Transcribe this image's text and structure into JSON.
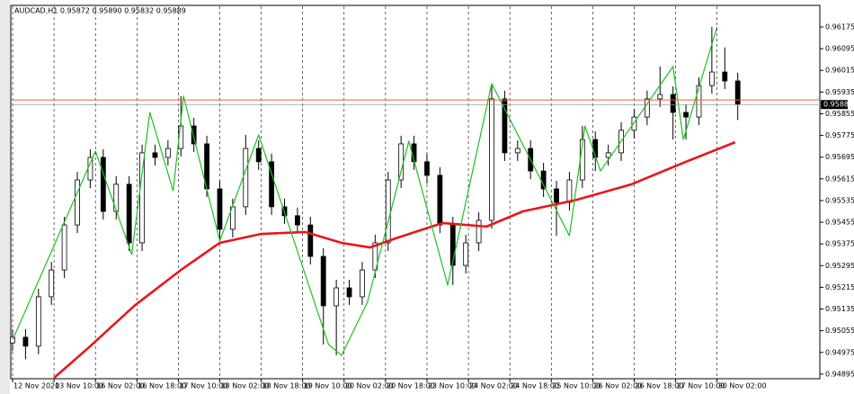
{
  "chart_data": {
    "type": "candlestick",
    "title": "AUDCAD,H1  0.95872 0.95890 0.95832 0.95889",
    "xlim": [
      0,
      311
    ],
    "ylim": [
      0.94878,
      0.96248
    ],
    "yticks": [
      0.96175,
      0.96095,
      0.96015,
      0.95935,
      0.95855,
      0.95775,
      0.95695,
      0.95615,
      0.95535,
      0.95455,
      0.95375,
      0.95295,
      0.95215,
      0.95135,
      0.95055,
      0.94975,
      0.94895
    ],
    "xticks": [
      {
        "value": 0,
        "label": "12 Nov 2020"
      },
      {
        "value": 16,
        "label": "13 Nov 10:00"
      },
      {
        "value": 32,
        "label": "16 Nov 02:00"
      },
      {
        "value": 48,
        "label": "16 Nov 18:00"
      },
      {
        "value": 64,
        "label": "17 Nov 10:00"
      },
      {
        "value": 80,
        "label": "18 Nov 02:00"
      },
      {
        "value": 96,
        "label": "18 Nov 18:00"
      },
      {
        "value": 112,
        "label": "19 Nov 10:00"
      },
      {
        "value": 128,
        "label": "20 Nov 02:00"
      },
      {
        "value": 144,
        "label": "20 Nov 18:00"
      },
      {
        "value": 160,
        "label": "23 Nov 10:00"
      },
      {
        "value": 176,
        "label": "24 Nov 02:00"
      },
      {
        "value": 192,
        "label": "24 Nov 18:00"
      },
      {
        "value": 208,
        "label": "25 Nov 10:00"
      },
      {
        "value": 224,
        "label": "26 Nov 02:00"
      },
      {
        "value": 240,
        "label": "26 Nov 18:00"
      },
      {
        "value": 256,
        "label": "27 Nov 10:00"
      },
      {
        "value": 272,
        "label": "30 Nov 02:00"
      }
    ],
    "grid": true,
    "x": [
      0,
      5,
      10,
      15,
      20,
      25,
      30,
      35,
      40,
      45,
      50,
      55,
      60,
      65,
      70,
      75,
      80,
      85,
      90,
      95,
      100,
      105,
      110,
      115,
      120,
      125,
      130,
      135,
      140,
      145,
      150,
      155,
      160,
      165,
      170,
      175,
      180,
      185,
      190,
      195,
      200,
      205,
      210,
      215,
      220,
      225,
      230,
      235,
      240,
      245,
      250,
      255,
      260,
      265,
      270,
      275,
      280
    ],
    "ohlc": [
      [
        0.9501,
        0.95061,
        0.9498,
        0.95031
      ],
      [
        0.95031,
        0.95061,
        0.9495,
        0.94998
      ],
      [
        0.94998,
        0.9521,
        0.94968,
        0.9518
      ],
      [
        0.9518,
        0.95309,
        0.9515,
        0.95279
      ],
      [
        0.95279,
        0.95475,
        0.95249,
        0.95445
      ],
      [
        0.95445,
        0.95641,
        0.95415,
        0.95611
      ],
      [
        0.95611,
        0.95724,
        0.95581,
        0.95694
      ],
      [
        0.95694,
        0.95724,
        0.95465,
        0.95495
      ],
      [
        0.95495,
        0.95625,
        0.95465,
        0.95595
      ],
      [
        0.95595,
        0.95625,
        0.95349,
        0.95379
      ],
      [
        0.95379,
        0.95741,
        0.95349,
        0.95711
      ],
      [
        0.95711,
        0.95741,
        0.95664,
        0.95694
      ],
      [
        0.95694,
        0.95757,
        0.95664,
        0.95727
      ],
      [
        0.95727,
        0.9592,
        0.95697,
        0.9581
      ],
      [
        0.9581,
        0.9584,
        0.95714,
        0.95744
      ],
      [
        0.95744,
        0.95774,
        0.95548,
        0.95578
      ],
      [
        0.95578,
        0.95608,
        0.95386,
        0.95429
      ],
      [
        0.95429,
        0.95542,
        0.95399,
        0.95512
      ],
      [
        0.95512,
        0.95777,
        0.95482,
        0.95727
      ],
      [
        0.95727,
        0.95757,
        0.95648,
        0.95678
      ],
      [
        0.95678,
        0.95708,
        0.95482,
        0.95512
      ],
      [
        0.95512,
        0.95542,
        0.95449,
        0.95479
      ],
      [
        0.95479,
        0.95509,
        0.95415,
        0.95445
      ],
      [
        0.95445,
        0.95475,
        0.95299,
        0.95329
      ],
      [
        0.95329,
        0.95359,
        0.95004,
        0.95147
      ],
      [
        0.95147,
        0.95243,
        0.94964,
        0.95213
      ],
      [
        0.95213,
        0.95243,
        0.9515,
        0.9518
      ],
      [
        0.9518,
        0.95309,
        0.9515,
        0.95279
      ],
      [
        0.95279,
        0.95409,
        0.95249,
        0.95379
      ],
      [
        0.95379,
        0.95641,
        0.95349,
        0.95611
      ],
      [
        0.95611,
        0.95774,
        0.95581,
        0.95744
      ],
      [
        0.95744,
        0.95774,
        0.95648,
        0.95678
      ],
      [
        0.95678,
        0.95708,
        0.95598,
        0.95628
      ],
      [
        0.95628,
        0.95658,
        0.95415,
        0.95445
      ],
      [
        0.95445,
        0.95475,
        0.95223,
        0.95296
      ],
      [
        0.95296,
        0.95409,
        0.95266,
        0.95379
      ],
      [
        0.95379,
        0.95492,
        0.95349,
        0.95462
      ],
      [
        0.95462,
        0.95966,
        0.95432,
        0.9591
      ],
      [
        0.9591,
        0.9594,
        0.95681,
        0.95711
      ],
      [
        0.95711,
        0.95757,
        0.95681,
        0.95727
      ],
      [
        0.95727,
        0.95757,
        0.95614,
        0.95644
      ],
      [
        0.95644,
        0.95674,
        0.95548,
        0.95578
      ],
      [
        0.95578,
        0.95608,
        0.95405,
        0.95528
      ],
      [
        0.95528,
        0.95641,
        0.95498,
        0.95611
      ],
      [
        0.95611,
        0.9581,
        0.95581,
        0.9576
      ],
      [
        0.9576,
        0.9579,
        0.95644,
        0.95694
      ],
      [
        0.95694,
        0.95741,
        0.95664,
        0.95711
      ],
      [
        0.95711,
        0.95824,
        0.95681,
        0.95794
      ],
      [
        0.95794,
        0.95873,
        0.95764,
        0.95843
      ],
      [
        0.95843,
        0.9594,
        0.95813,
        0.9591
      ],
      [
        0.9591,
        0.96029,
        0.9588,
        0.95926
      ],
      [
        0.95926,
        0.95956,
        0.9576,
        0.9586
      ],
      [
        0.9586,
        0.9589,
        0.9576,
        0.95843
      ],
      [
        0.95843,
        0.95989,
        0.95813,
        0.95959
      ],
      [
        0.95959,
        0.96175,
        0.95929,
        0.96009
      ],
      [
        0.96009,
        0.961,
        0.95946,
        0.95976
      ],
      [
        0.95976,
        0.96006,
        0.95832,
        0.95889
      ]
    ],
    "zigzag": {
      "color": "#1fbf1f",
      "x": [
        0,
        32,
        46,
        53,
        62,
        66,
        80,
        95,
        122,
        127,
        137,
        153,
        168,
        185,
        215,
        221,
        227,
        255,
        259,
        272
      ],
      "values": [
        0.95021,
        0.95717,
        0.95336,
        0.9586,
        0.95571,
        0.9592,
        0.95386,
        0.95777,
        0.95004,
        0.94964,
        0.9516,
        0.95754,
        0.95223,
        0.95966,
        0.95405,
        0.9581,
        0.95644,
        0.96029,
        0.9576,
        0.96175
      ]
    },
    "ma": {
      "color": "#e8161b",
      "x": [
        16,
        30,
        47,
        65,
        80,
        96,
        113,
        127,
        138,
        148,
        166,
        183,
        197,
        218,
        239,
        260,
        279
      ],
      "values": [
        0.94881,
        0.94998,
        0.95147,
        0.95279,
        0.95379,
        0.95412,
        0.95419,
        0.95379,
        0.95362,
        0.95396,
        0.95452,
        0.95439,
        0.95495,
        0.95538,
        0.95595,
        0.95678,
        0.9575
      ]
    },
    "level": {
      "color": "#f06030",
      "value": 0.95906
    },
    "current_price": 0.95889
  }
}
